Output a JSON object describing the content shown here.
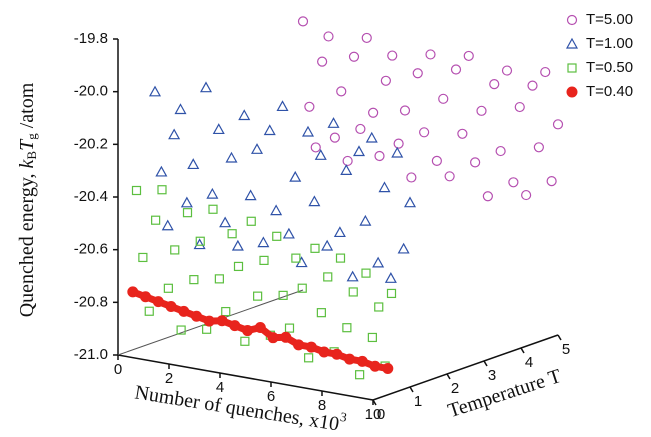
{
  "chart_data": {
    "type": "scatter3d",
    "ylabel_parts": [
      "Quenched energy, ",
      "k",
      "B",
      "T",
      "g",
      " /atom"
    ],
    "xlabel_parts": [
      "Number of quenches, x10",
      "3"
    ],
    "zlabel": "Temperature T",
    "xlim": [
      0,
      10
    ],
    "xticks": [
      0,
      2,
      4,
      6,
      8,
      10
    ],
    "ylim": [
      -21,
      -19.8
    ],
    "yticks": [
      {
        "value": -21,
        "label": "-21.0"
      },
      -20.8,
      -20.6,
      -20.4,
      -20.2,
      {
        "value": -20,
        "label": "-20.0"
      },
      -19.8
    ],
    "zlim": [
      0,
      5
    ],
    "zticks": [
      0,
      1,
      2,
      3,
      4,
      5
    ],
    "legend": "top-right",
    "series": [
      {
        "name": "T=5.00",
        "color": "#b54fb0",
        "marker": "circle",
        "T": 5,
        "x": [
          0,
          0.25,
          0.5,
          0.75,
          1,
          1.25,
          1.5,
          1.75,
          2,
          2.25,
          2.5,
          2.75,
          3,
          3.25,
          3.5,
          3.75,
          4,
          4.25,
          4.5,
          4.75,
          5,
          5.25,
          5.5,
          5.75,
          6,
          6.25,
          6.5,
          6.75,
          7,
          7.25,
          7.5,
          7.75,
          8,
          8.25,
          8.5,
          8.75,
          9,
          9.25,
          9.5,
          9.75,
          10
        ],
        "values": [
          -19.98,
          -20.3,
          -20.45,
          -20.12,
          -20.02,
          -20.4,
          -20.22,
          -20.48,
          -20.08,
          -20.35,
          -20.0,
          -20.28,
          -20.44,
          -20.15,
          -20.05,
          -20.38,
          -20.25,
          -20.5,
          -20.1,
          -20.32,
          -20.02,
          -20.42,
          -20.18,
          -20.47,
          -20.06,
          -20.3,
          -20.0,
          -20.4,
          -20.2,
          -20.52,
          -20.09,
          -20.34,
          -20.03,
          -20.45,
          -20.16,
          -20.49,
          -20.07,
          -20.3,
          -20.01,
          -20.42,
          -20.2
        ]
      },
      {
        "name": "T=1.00",
        "color": "#2f52a8",
        "marker": "triangle",
        "T": 1,
        "x": [
          0,
          0.25,
          0.5,
          0.75,
          1,
          1.25,
          1.5,
          1.75,
          2,
          2.25,
          2.5,
          2.75,
          3,
          3.25,
          3.5,
          3.75,
          4,
          4.25,
          4.5,
          4.75,
          5,
          5.25,
          5.5,
          5.75,
          6,
          6.25,
          6.5,
          6.75,
          7,
          7.25,
          7.5,
          7.75,
          8,
          8.25,
          8.5,
          8.75,
          9,
          9.25,
          9.5,
          9.75,
          10
        ],
        "values": [
          -20.05,
          -20.35,
          -20.55,
          -20.2,
          -20.1,
          -20.45,
          -20.3,
          -20.6,
          -20.0,
          -20.4,
          -20.15,
          -20.5,
          -20.25,
          -20.58,
          -20.08,
          -20.38,
          -20.2,
          -20.55,
          -20.12,
          -20.42,
          -20.02,
          -20.5,
          -20.28,
          -20.6,
          -20.1,
          -20.36,
          -20.18,
          -20.52,
          -20.05,
          -20.46,
          -20.22,
          -20.62,
          -20.14,
          -20.4,
          -20.08,
          -20.55,
          -20.26,
          -20.6,
          -20.12,
          -20.48,
          -20.3
        ]
      },
      {
        "name": "T=0.50",
        "color": "#5cbf3f",
        "marker": "square",
        "T": 0.5,
        "x": [
          0,
          0.25,
          0.5,
          0.75,
          1,
          1.25,
          1.5,
          1.75,
          2,
          2.25,
          2.5,
          2.75,
          3,
          3.25,
          3.5,
          3.75,
          4,
          4.25,
          4.5,
          4.75,
          5,
          5.25,
          5.5,
          5.75,
          6,
          6.25,
          6.5,
          6.75,
          7,
          7.25,
          7.5,
          7.75,
          8,
          8.25,
          8.5,
          8.75,
          9,
          9.25,
          9.5,
          9.75,
          10
        ],
        "values": [
          -20.4,
          -20.65,
          -20.85,
          -20.5,
          -20.38,
          -20.75,
          -20.6,
          -20.9,
          -20.45,
          -20.7,
          -20.55,
          -20.88,
          -20.42,
          -20.68,
          -20.8,
          -20.5,
          -20.62,
          -20.9,
          -20.44,
          -20.72,
          -20.58,
          -20.86,
          -20.48,
          -20.7,
          -20.82,
          -20.55,
          -20.66,
          -20.92,
          -20.5,
          -20.74,
          -20.6,
          -20.88,
          -20.52,
          -20.78,
          -20.64,
          -20.95,
          -20.56,
          -20.8,
          -20.68,
          -20.9,
          -20.62
        ]
      },
      {
        "name": "T=0.40",
        "color": "#e8241d",
        "marker": "dot",
        "T": 0.4,
        "x": [
          0,
          0.5,
          1,
          1.5,
          2,
          2.5,
          3,
          3.5,
          4,
          4.5,
          5,
          5.5,
          6,
          6.5,
          7,
          7.5,
          8,
          8.5,
          9,
          9.5,
          10
        ],
        "values": [
          -20.78,
          -20.79,
          -20.8,
          -20.81,
          -20.82,
          -20.83,
          -20.84,
          -20.83,
          -20.84,
          -20.85,
          -20.83,
          -20.86,
          -20.85,
          -20.87,
          -20.87,
          -20.88,
          -20.88,
          -20.89,
          -20.89,
          -20.9,
          -20.9
        ]
      }
    ]
  }
}
